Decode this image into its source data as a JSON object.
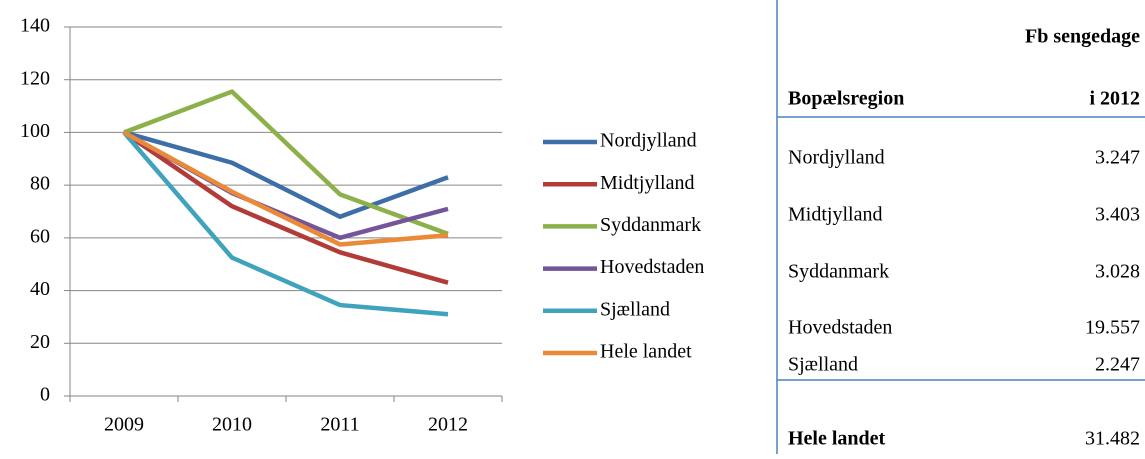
{
  "chart_data": {
    "type": "line",
    "categories": [
      "2009",
      "2010",
      "2011",
      "2012"
    ],
    "series": [
      {
        "name": "Nordjylland",
        "color": "#3e6ea7",
        "values": [
          100,
          88.5,
          68,
          83
        ]
      },
      {
        "name": "Midtjylland",
        "color": "#b23b38",
        "values": [
          100,
          72,
          54.5,
          43
        ]
      },
      {
        "name": "Syddanmark",
        "color": "#8cb14a",
        "values": [
          100,
          115.5,
          76.5,
          61.5
        ]
      },
      {
        "name": "Hovedstaden",
        "color": "#74549a",
        "values": [
          100,
          77,
          60,
          71
        ]
      },
      {
        "name": "Sjælland",
        "color": "#3fa3bd",
        "values": [
          100,
          52.5,
          34.5,
          31
        ]
      },
      {
        "name": "Hele landet",
        "color": "#ea8a38",
        "values": [
          100,
          77.5,
          57.5,
          61
        ]
      }
    ],
    "ylim": [
      0,
      140
    ],
    "yticks": [
      0,
      20,
      40,
      60,
      80,
      100,
      120,
      140
    ],
    "grid": true,
    "legend": "right"
  },
  "table": {
    "header": [
      "Bopælsregion",
      "Fb sengedage",
      "i 2012"
    ],
    "rows": [
      [
        "Nordjylland",
        "3.247"
      ],
      [
        "Midtjylland",
        "3.403"
      ],
      [
        "Syddanmark",
        "3.028"
      ],
      [
        "Hovedstaden",
        "19.557"
      ],
      [
        "Sjælland",
        "2.247"
      ]
    ],
    "total": [
      "Hele landet",
      "31.482"
    ]
  }
}
